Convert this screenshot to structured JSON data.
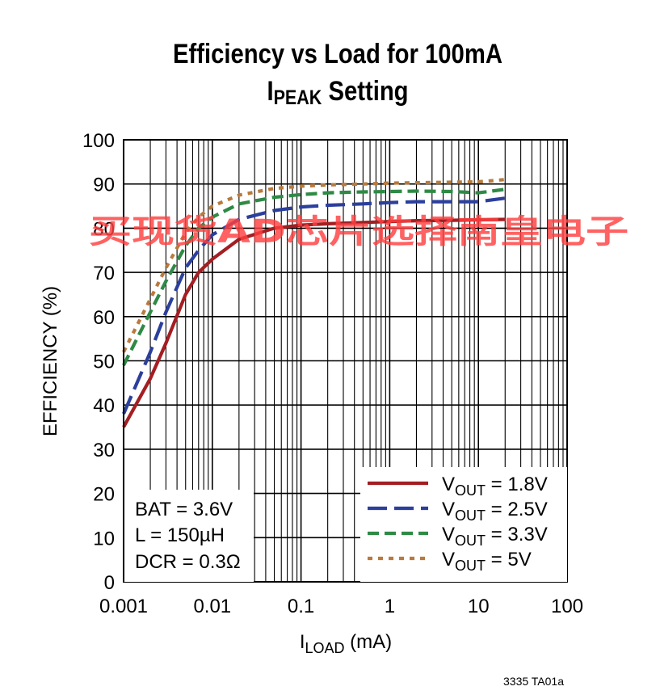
{
  "chart_data": {
    "type": "line",
    "title_main": "Efficiency vs Load for 100mA",
    "title_line2_pre": "I",
    "title_line2_sub": "PEAK",
    "title_line2_post": " Setting",
    "xlabel_pre": "I",
    "xlabel_sub": "LOAD",
    "xlabel_post": " (mA)",
    "ylabel": "EFFICIENCY (%)",
    "xscale": "log",
    "xlim": [
      0.001,
      100
    ],
    "ylim": [
      0,
      100
    ],
    "x_ticks": [
      0.001,
      0.01,
      0.1,
      1,
      10,
      100
    ],
    "x_tick_labels": [
      "0.001",
      "0.01",
      "0.1",
      "1",
      "10",
      "100"
    ],
    "y_ticks": [
      0,
      10,
      20,
      30,
      40,
      50,
      60,
      70,
      80,
      90,
      100
    ],
    "y_tick_labels": [
      "0",
      "10",
      "20",
      "30",
      "40",
      "50",
      "60",
      "70",
      "80",
      "90",
      "100"
    ],
    "grid": true,
    "legend_position": "bottom-right",
    "conditions": [
      "BAT = 3.6V",
      "L = 150µH",
      "DCR = 0.3Ω"
    ],
    "series": [
      {
        "name": "V",
        "name_sub": "OUT",
        "name_post": " = 1.8V",
        "color": "#a31e22",
        "style": "solid",
        "x": [
          0.001,
          0.002,
          0.003,
          0.005,
          0.007,
          0.01,
          0.02,
          0.05,
          0.1,
          0.2,
          0.5,
          1,
          2,
          5,
          10,
          20
        ],
        "y": [
          35,
          46,
          54,
          65,
          70,
          73,
          77.5,
          80,
          80.7,
          81,
          81.3,
          81.5,
          81.7,
          81.8,
          81.9,
          82
        ]
      },
      {
        "name": "V",
        "name_sub": "OUT",
        "name_post": " = 2.5V",
        "color": "#2b3f9c",
        "style": "dashed",
        "x": [
          0.001,
          0.002,
          0.003,
          0.005,
          0.007,
          0.01,
          0.02,
          0.05,
          0.1,
          0.2,
          0.5,
          1,
          2,
          5,
          10,
          20
        ],
        "y": [
          38,
          52,
          61,
          71,
          75,
          78.5,
          82,
          84,
          84.8,
          85.2,
          85.5,
          85.8,
          86,
          86,
          86,
          86.8
        ]
      },
      {
        "name": "V",
        "name_sub": "OUT",
        "name_post": " = 3.3V",
        "color": "#2e8a45",
        "style": "dashed",
        "x": [
          0.001,
          0.002,
          0.003,
          0.005,
          0.007,
          0.01,
          0.02,
          0.05,
          0.1,
          0.2,
          0.5,
          1,
          2,
          5,
          10,
          20
        ],
        "y": [
          49,
          61,
          68,
          76,
          80,
          82.5,
          85.5,
          87,
          87.6,
          88,
          88.2,
          88.3,
          88.4,
          88.3,
          88,
          88.8
        ]
      },
      {
        "name": "V",
        "name_sub": "OUT",
        "name_post": " = 5V",
        "color": "#b87a3e",
        "style": "dotted",
        "x": [
          0.001,
          0.002,
          0.003,
          0.005,
          0.007,
          0.01,
          0.02,
          0.05,
          0.1,
          0.2,
          0.5,
          1,
          2,
          5,
          10,
          20
        ],
        "y": [
          52,
          64,
          71,
          79,
          82.5,
          85,
          87.5,
          89,
          89.5,
          89.8,
          90,
          90.2,
          90.3,
          90.4,
          90.5,
          91
        ]
      }
    ],
    "figure_code": "3335 TA01a"
  },
  "watermark": "买现货AD芯片选择南皇电子"
}
